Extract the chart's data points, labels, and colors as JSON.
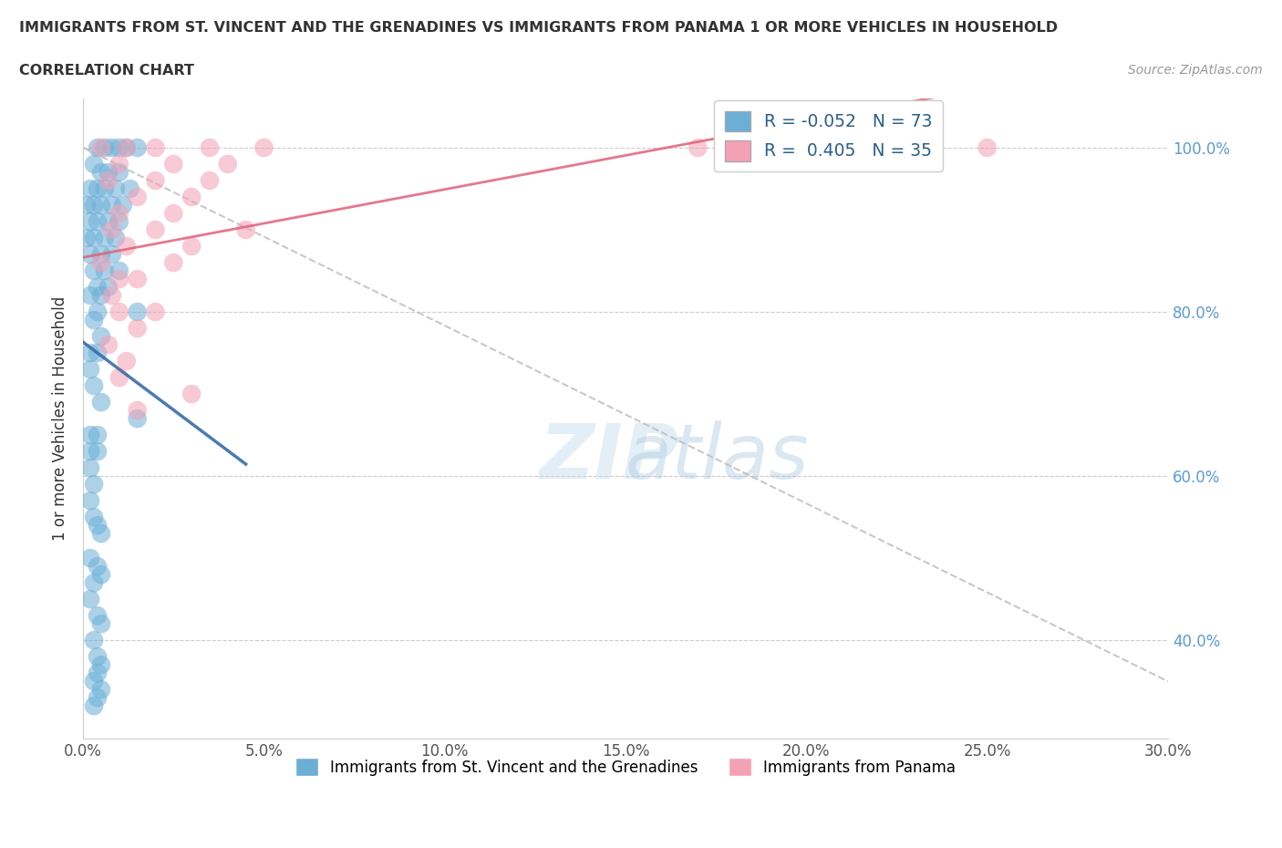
{
  "title": "IMMIGRANTS FROM ST. VINCENT AND THE GRENADINES VS IMMIGRANTS FROM PANAMA 1 OR MORE VEHICLES IN HOUSEHOLD",
  "subtitle": "CORRELATION CHART",
  "source": "Source: ZipAtlas.com",
  "ylabel": "1 or more Vehicles in Household",
  "watermark_line1": "ZIP",
  "watermark_line2": "atlas",
  "blue_R": -0.052,
  "blue_N": 73,
  "pink_R": 0.405,
  "pink_N": 35,
  "xlim": [
    0.0,
    30.0
  ],
  "ylim": [
    28.0,
    106.0
  ],
  "blue_scatter_color": "#6baed6",
  "pink_scatter_color": "#f4a0b5",
  "blue_line_color": "#3a6ea5",
  "pink_line_color": "#e0607a",
  "dashed_line_color": "#bbbbbb",
  "title_color": "#333333",
  "bg_color": "#ffffff",
  "grid_color": "#cccccc",
  "right_tick_color": "#5b9bd5",
  "blue_scatter_x": [
    0.4,
    0.6,
    0.8,
    1.0,
    1.2,
    1.5,
    0.3,
    0.5,
    0.7,
    1.0,
    0.2,
    0.4,
    0.6,
    0.9,
    1.3,
    0.1,
    0.3,
    0.5,
    0.8,
    1.1,
    0.2,
    0.4,
    0.7,
    1.0,
    0.1,
    0.3,
    0.6,
    0.9,
    0.2,
    0.5,
    0.8,
    0.3,
    0.6,
    1.0,
    0.4,
    0.7,
    0.2,
    0.5,
    0.4,
    1.5,
    0.3,
    0.5,
    0.2,
    0.4,
    0.2,
    0.3,
    0.5,
    1.5,
    0.2,
    0.4,
    0.2,
    0.4,
    0.2,
    0.3,
    0.2,
    0.3,
    0.4,
    0.5,
    0.2,
    0.4,
    0.5,
    0.3,
    0.2,
    0.4,
    0.5,
    0.3,
    0.4,
    0.5,
    0.4,
    0.3,
    0.5,
    0.4,
    0.3
  ],
  "blue_scatter_y": [
    100.0,
    100.0,
    100.0,
    100.0,
    100.0,
    100.0,
    98.0,
    97.0,
    97.0,
    97.0,
    95.0,
    95.0,
    95.0,
    95.0,
    95.0,
    93.0,
    93.0,
    93.0,
    93.0,
    93.0,
    91.0,
    91.0,
    91.0,
    91.0,
    89.0,
    89.0,
    89.0,
    89.0,
    87.0,
    87.0,
    87.0,
    85.0,
    85.0,
    85.0,
    83.0,
    83.0,
    82.0,
    82.0,
    80.0,
    80.0,
    79.0,
    77.0,
    75.0,
    75.0,
    73.0,
    71.0,
    69.0,
    67.0,
    65.0,
    65.0,
    63.0,
    63.0,
    61.0,
    59.0,
    57.0,
    55.0,
    54.0,
    53.0,
    50.0,
    49.0,
    48.0,
    47.0,
    45.0,
    43.0,
    42.0,
    40.0,
    38.0,
    37.0,
    36.0,
    35.0,
    34.0,
    33.0,
    32.0
  ],
  "pink_scatter_x": [
    0.5,
    1.2,
    2.0,
    3.5,
    5.0,
    1.0,
    2.5,
    4.0,
    0.7,
    2.0,
    3.5,
    1.5,
    3.0,
    1.0,
    2.5,
    0.8,
    2.0,
    4.5,
    1.2,
    3.0,
    0.5,
    2.5,
    1.0,
    1.5,
    0.8,
    1.0,
    2.0,
    1.5,
    0.7,
    1.2,
    1.0,
    3.0,
    1.5,
    17.0,
    25.0
  ],
  "pink_scatter_y": [
    100.0,
    100.0,
    100.0,
    100.0,
    100.0,
    98.0,
    98.0,
    98.0,
    96.0,
    96.0,
    96.0,
    94.0,
    94.0,
    92.0,
    92.0,
    90.0,
    90.0,
    90.0,
    88.0,
    88.0,
    86.0,
    86.0,
    84.0,
    84.0,
    82.0,
    80.0,
    80.0,
    78.0,
    76.0,
    74.0,
    72.0,
    70.0,
    68.0,
    100.0,
    100.0
  ]
}
